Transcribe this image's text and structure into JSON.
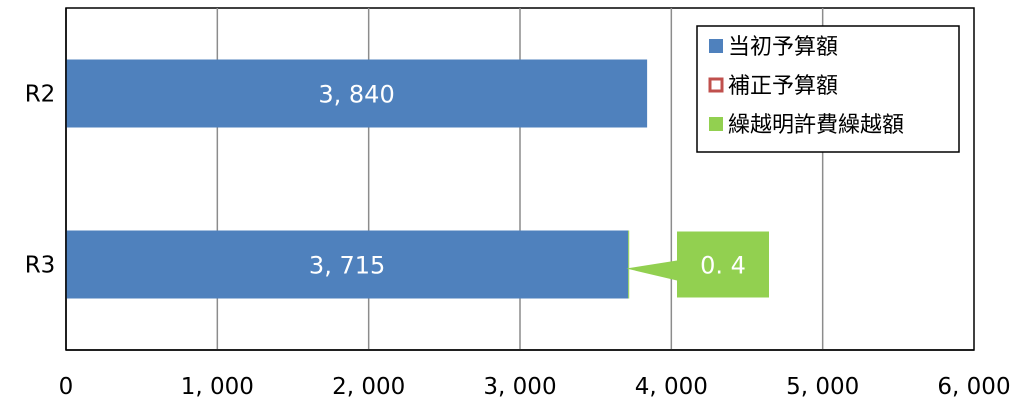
{
  "chart_data": {
    "type": "bar",
    "orientation": "horizontal",
    "stacked": true,
    "categories": [
      "R2",
      "R3"
    ],
    "series": [
      {
        "name": "当初予算額",
        "values": [
          3840,
          3715
        ],
        "labels": [
          "3, 840",
          "3, 715"
        ],
        "color": "#4f81bd"
      },
      {
        "name": "補正予算額",
        "values": [
          0,
          0
        ],
        "labels": [
          "",
          ""
        ],
        "color": "#c0504d"
      },
      {
        "name": "繰越明許費繰越額",
        "values": [
          0,
          0.4
        ],
        "labels": [
          "",
          "0. 4"
        ],
        "color": "#92d050"
      }
    ],
    "xlim": [
      0,
      6000
    ],
    "xticks": [
      0,
      1000,
      2000,
      3000,
      4000,
      5000,
      6000
    ],
    "xtick_labels": [
      "0",
      "1, 000",
      "2, 000",
      "3, 000",
      "4, 000",
      "5, 000",
      "6, 000"
    ],
    "grid": true,
    "legend": "top-right",
    "title": "",
    "xlabel": "",
    "ylabel": ""
  }
}
